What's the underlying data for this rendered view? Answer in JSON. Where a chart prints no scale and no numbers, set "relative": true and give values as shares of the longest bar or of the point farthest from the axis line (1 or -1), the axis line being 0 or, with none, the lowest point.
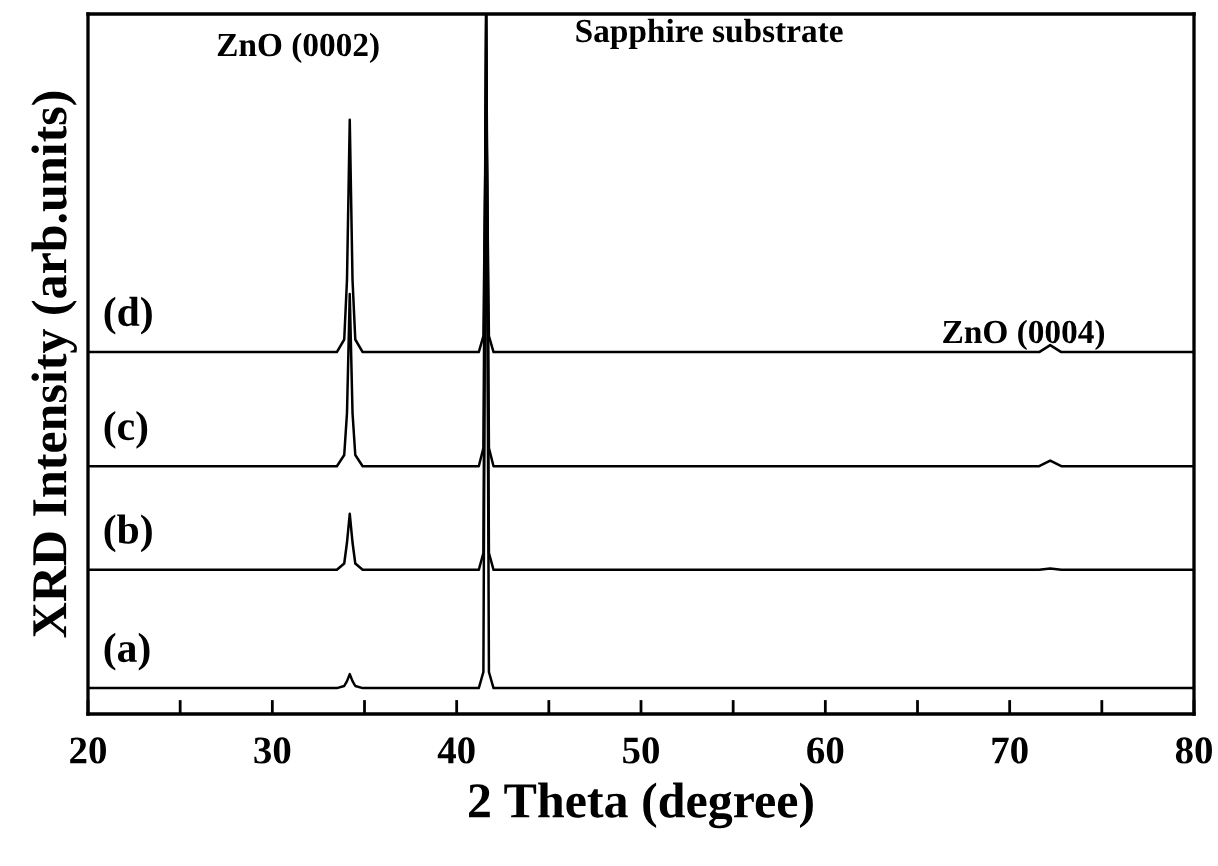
{
  "chart_data": {
    "type": "line",
    "relative": true,
    "xlabel": "2 Theta (degree)",
    "ylabel": "XRD Intensity (arb.units)",
    "annotations": [
      "ZnO (0002)",
      "Sapphire substrate",
      "ZnO (0004)"
    ],
    "x": [
      20,
      33.5,
      33.9,
      34.05,
      34.2,
      34.35,
      34.5,
      34.9,
      41.2,
      41.45,
      41.6,
      41.75,
      42.0,
      71.6,
      72.2,
      72.8,
      80
    ],
    "xlim": [
      20,
      80
    ],
    "xticks": [
      20,
      {
        "value": 25,
        "label": null
      },
      30,
      {
        "value": 35,
        "label": null
      },
      40,
      {
        "value": 45,
        "label": null
      },
      50,
      {
        "value": 55,
        "label": null
      },
      60,
      {
        "value": 65,
        "label": null
      },
      70,
      {
        "value": 75,
        "label": null
      },
      80
    ],
    "tick_labels": "x",
    "marker": "none",
    "line_style": "solid",
    "series": [
      {
        "name": "(a)",
        "color": "#000000",
        "values": [
          0.037,
          0.037,
          0.04,
          0.047,
          0.057,
          0.047,
          0.04,
          0.037,
          0.037,
          0.06,
          1.0,
          0.06,
          0.037,
          0.037,
          0.037,
          0.037,
          0.037
        ]
      },
      {
        "name": "(b)",
        "color": "#000000",
        "values": [
          0.206,
          0.206,
          0.215,
          0.245,
          0.286,
          0.245,
          0.215,
          0.206,
          0.206,
          0.23,
          1.0,
          0.23,
          0.206,
          0.206,
          0.208,
          0.206,
          0.206
        ]
      },
      {
        "name": "(c)",
        "color": "#000000",
        "values": [
          0.354,
          0.354,
          0.37,
          0.43,
          0.6,
          0.43,
          0.37,
          0.354,
          0.354,
          0.38,
          1.0,
          0.38,
          0.354,
          0.354,
          0.362,
          0.354,
          0.354
        ]
      },
      {
        "name": "(d)",
        "color": "#000000",
        "values": [
          0.517,
          0.517,
          0.535,
          0.62,
          0.849,
          0.62,
          0.535,
          0.517,
          0.517,
          0.54,
          0.886,
          0.54,
          0.517,
          0.517,
          0.527,
          0.517,
          0.517
        ]
      }
    ]
  }
}
